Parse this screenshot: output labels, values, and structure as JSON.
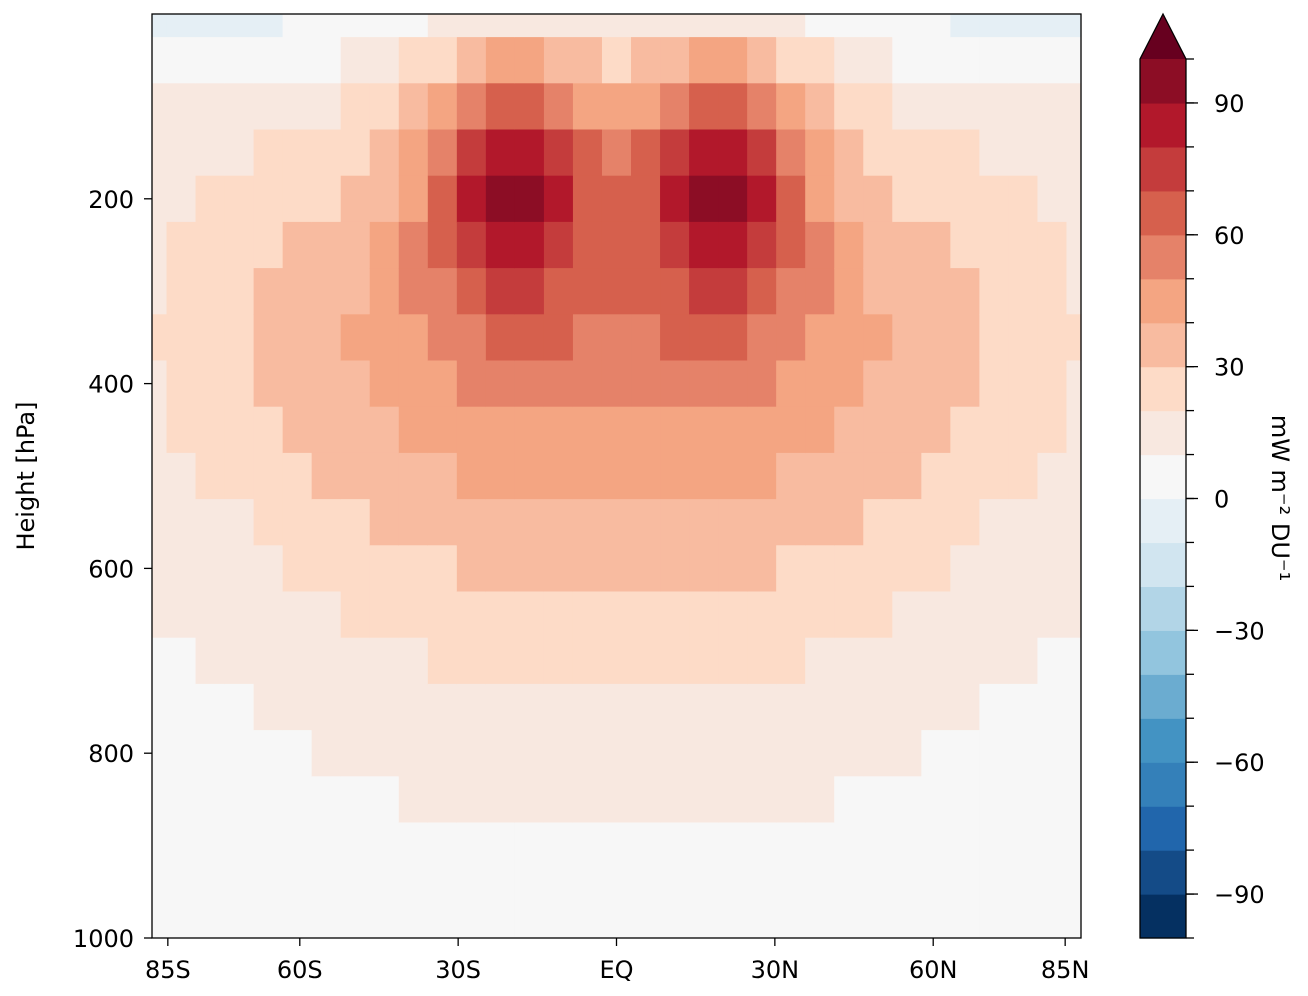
{
  "chart_data": {
    "type": "heatmap",
    "ylabel": "Height [hPa]",
    "xlabel": "",
    "y_ticks": [
      200,
      400,
      600,
      800,
      1000
    ],
    "y_range": [
      1000,
      0
    ],
    "x_ticks": [
      {
        "lat": -85,
        "label": "85S"
      },
      {
        "lat": -60,
        "label": "60S"
      },
      {
        "lat": -30,
        "label": "30S"
      },
      {
        "lat": 0,
        "label": "EQ"
      },
      {
        "lat": 30,
        "label": "30N"
      },
      {
        "lat": 60,
        "label": "60N"
      },
      {
        "lat": 85,
        "label": "85N"
      }
    ],
    "x_range": [
      -88,
      88
    ],
    "colorbar": {
      "label": "mW m⁻² DU⁻¹",
      "ticks": [
        -90,
        -60,
        -30,
        0,
        30,
        60,
        90
      ],
      "range": [
        -100,
        100
      ],
      "extend": "max",
      "over_color": "#67001f",
      "colors": [
        "#053061",
        "#144b87",
        "#2166ac",
        "#3480b9",
        "#4393c3",
        "#6bacd0",
        "#92c5de",
        "#b2d5e7",
        "#d1e5f0",
        "#e5eff5",
        "#f7f7f7",
        "#f8e8e0",
        "#fddbc7",
        "#f8bba0",
        "#f4a582",
        "#e58269",
        "#d6604d",
        "#c43c3c",
        "#b2182b",
        "#8c0d25"
      ]
    },
    "grid": false
  }
}
